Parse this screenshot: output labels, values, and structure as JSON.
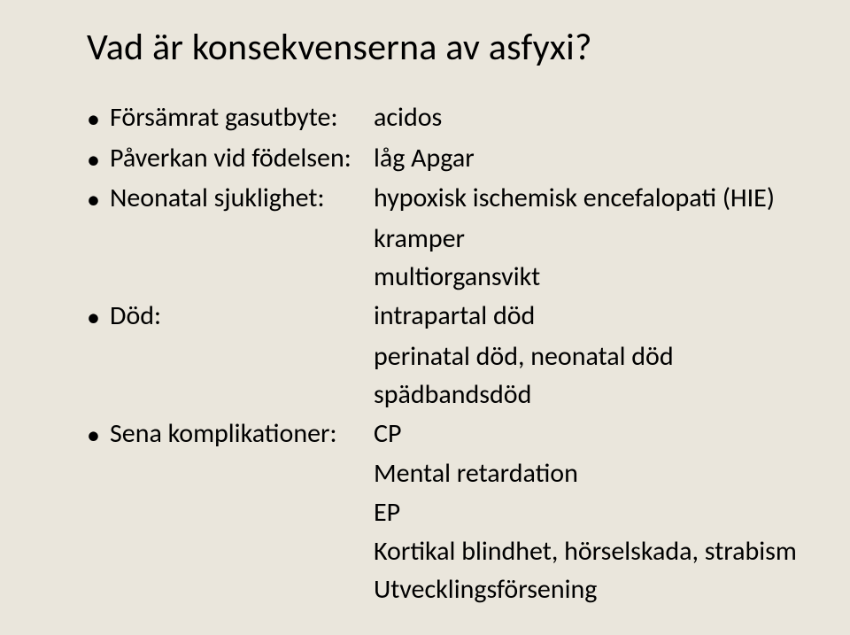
{
  "background_color": "#eae6dc",
  "text_color": "#000000",
  "font_family": "Calibri",
  "title_fontsize": 42,
  "body_fontsize": 30,
  "title": "Vad är konsekvenserna av asfyxi?",
  "rows": {
    "r1_label": "Försämrat gasutbyte:",
    "r1_value": "acidos",
    "r2_label": "Påverkan vid födelsen:",
    "r2_value": "låg Apgar",
    "r3_label": "Neonatal sjuklighet:",
    "r3_value": "hypoxisk ischemisk encefalopati (HIE)",
    "r3_sub1": "kramper",
    "r3_sub2": "multiorgansvikt",
    "r4_label": "Död:",
    "r4_value": "intrapartal död",
    "r4_sub1": "perinatal död, neonatal död",
    "r4_sub2": "spädbandsdöd",
    "r5_label": "Sena komplikationer:",
    "r5_value": "CP",
    "r5_sub1": "Mental retardation",
    "r5_sub2": "EP",
    "r5_sub3": "Kortikal blindhet, hörselskada, strabism",
    "r5_sub4": "Utvecklingsförsening"
  },
  "bullet_glyph": "•"
}
